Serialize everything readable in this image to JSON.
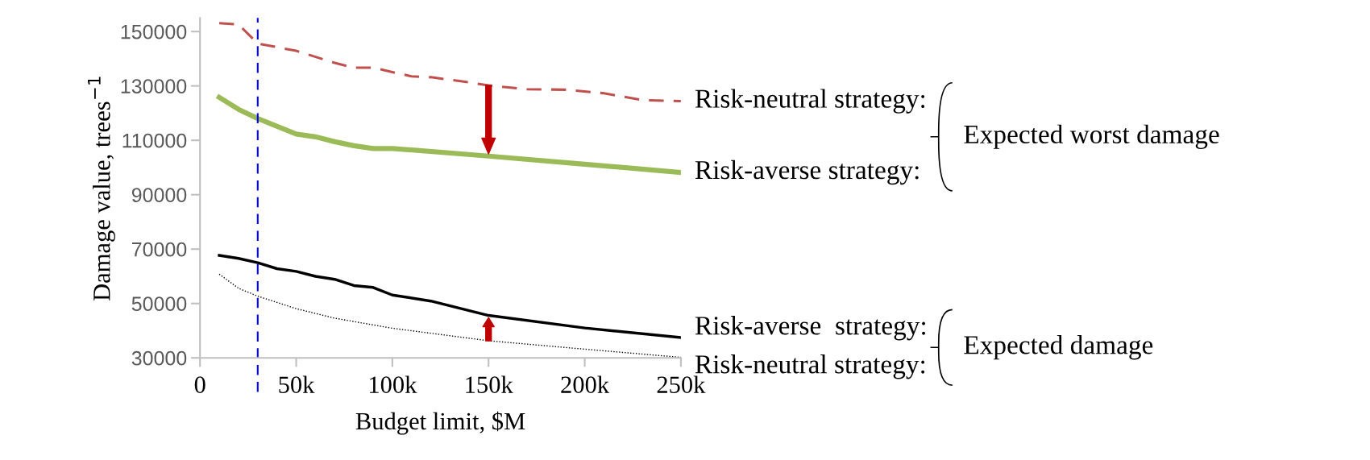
{
  "chart_data": {
    "type": "line",
    "xlabel": "Budget limit, $M",
    "ylabel": "Damage value, trees$^{−1}$",
    "xlim": [
      0,
      250000
    ],
    "xticks": [
      0,
      {
        "value": 50000,
        "label": "50k"
      },
      {
        "value": 100000,
        "label": "100k"
      },
      {
        "value": 150000,
        "label": "150k"
      },
      {
        "value": 200000,
        "label": "200k"
      },
      {
        "value": 250000,
        "label": "250k"
      }
    ],
    "ylim": [
      30000,
      155000
    ],
    "yticks": [
      30000,
      50000,
      70000,
      90000,
      110000,
      130000,
      150000
    ],
    "grid": false,
    "legend": false,
    "series": [
      {
        "name": "Risk-neutral strategy:",
        "color": "#c0504d",
        "line_style": "dashed",
        "x": [
          10000,
          20000,
          30000,
          50000,
          70000,
          80000,
          90000,
          110000,
          120000,
          140000,
          150000,
          170000,
          190000,
          210000,
          230000,
          250000
        ],
        "values": [
          153100,
          152600,
          145600,
          142900,
          138500,
          136700,
          136700,
          133500,
          133200,
          131300,
          130200,
          128800,
          128600,
          127300,
          124800,
          124400
        ]
      },
      {
        "name": "Risk-averse strategy:",
        "color": "#9bbb59",
        "line_style": "solid",
        "x": [
          10000,
          20000,
          30000,
          50000,
          60000,
          70000,
          80000,
          90000,
          100000,
          150000,
          200000,
          250000
        ],
        "values": [
          125800,
          121400,
          118000,
          112300,
          111300,
          109500,
          108000,
          107000,
          107000,
          104200,
          101200,
          98200
        ]
      },
      {
        "name": "Risk-averse  strategy:",
        "color": "#000000",
        "line_style": "solid",
        "x": [
          10000,
          20000,
          30000,
          40000,
          50000,
          60000,
          70000,
          80000,
          90000,
          100000,
          120000,
          150000,
          200000,
          250000
        ],
        "values": [
          67700,
          66600,
          65000,
          62800,
          61800,
          60000,
          58900,
          56600,
          55900,
          53100,
          50900,
          45600,
          41000,
          37500
        ]
      },
      {
        "name": "Risk-neutral strategy:",
        "color": "#000000",
        "line_style": "dotted",
        "x": [
          10000,
          20000,
          30000,
          50000,
          70000,
          100000,
          150000,
          200000,
          250000
        ],
        "values": [
          60800,
          55600,
          52700,
          48100,
          44600,
          40900,
          36300,
          33200,
          30200
        ]
      }
    ],
    "ref_lines": [
      {
        "axis": "x",
        "value": 30000,
        "color": "#0000ff",
        "line_style": "dashed"
      }
    ],
    "annotations": [
      "Expected worst damage",
      "Expected damage"
    ]
  }
}
